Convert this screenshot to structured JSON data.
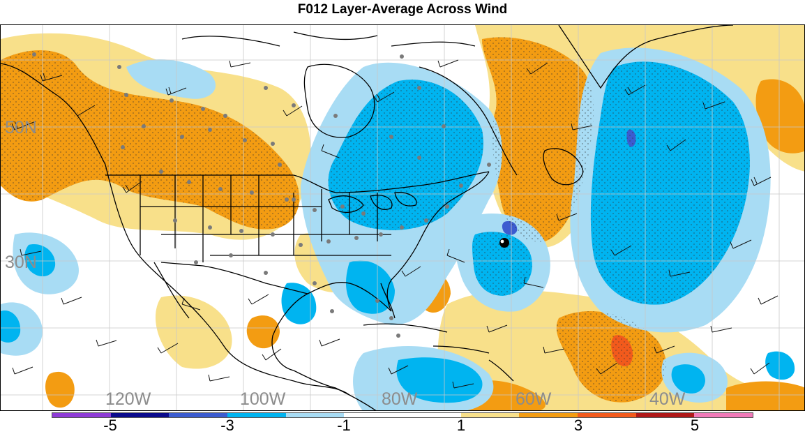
{
  "title": "F012 Layer-Average Across Wind",
  "latitude_labels": [
    "50N",
    "30N"
  ],
  "longitude_labels": [
    "120W",
    "100W",
    "80W",
    "60W",
    "40W"
  ],
  "colorbar": {
    "colors": [
      "#8e3bd6",
      "#0a0a8c",
      "#3c5cd0",
      "#00b4f0",
      "#a8dcf4",
      "#ffffff",
      "#ffffff",
      "#f8e08a",
      "#f39c12",
      "#f25a1c",
      "#b01818",
      "#f07ab8"
    ],
    "tick_labels": [
      "-5",
      "-3",
      "-1",
      "1",
      "3",
      "5"
    ]
  },
  "legend_palette": {
    "strong_positive": "#f39c12",
    "weak_positive": "#f8e08a",
    "weak_negative": "#a8dcf4",
    "strong_negative": "#00b4f0",
    "very_negative": "#3c5cd0",
    "very_positive": "#f25a1c"
  },
  "overlays": [
    "wind-barbs",
    "station-dots",
    "stipple-hatching",
    "political-boundaries",
    "lat-lon-grid"
  ]
}
